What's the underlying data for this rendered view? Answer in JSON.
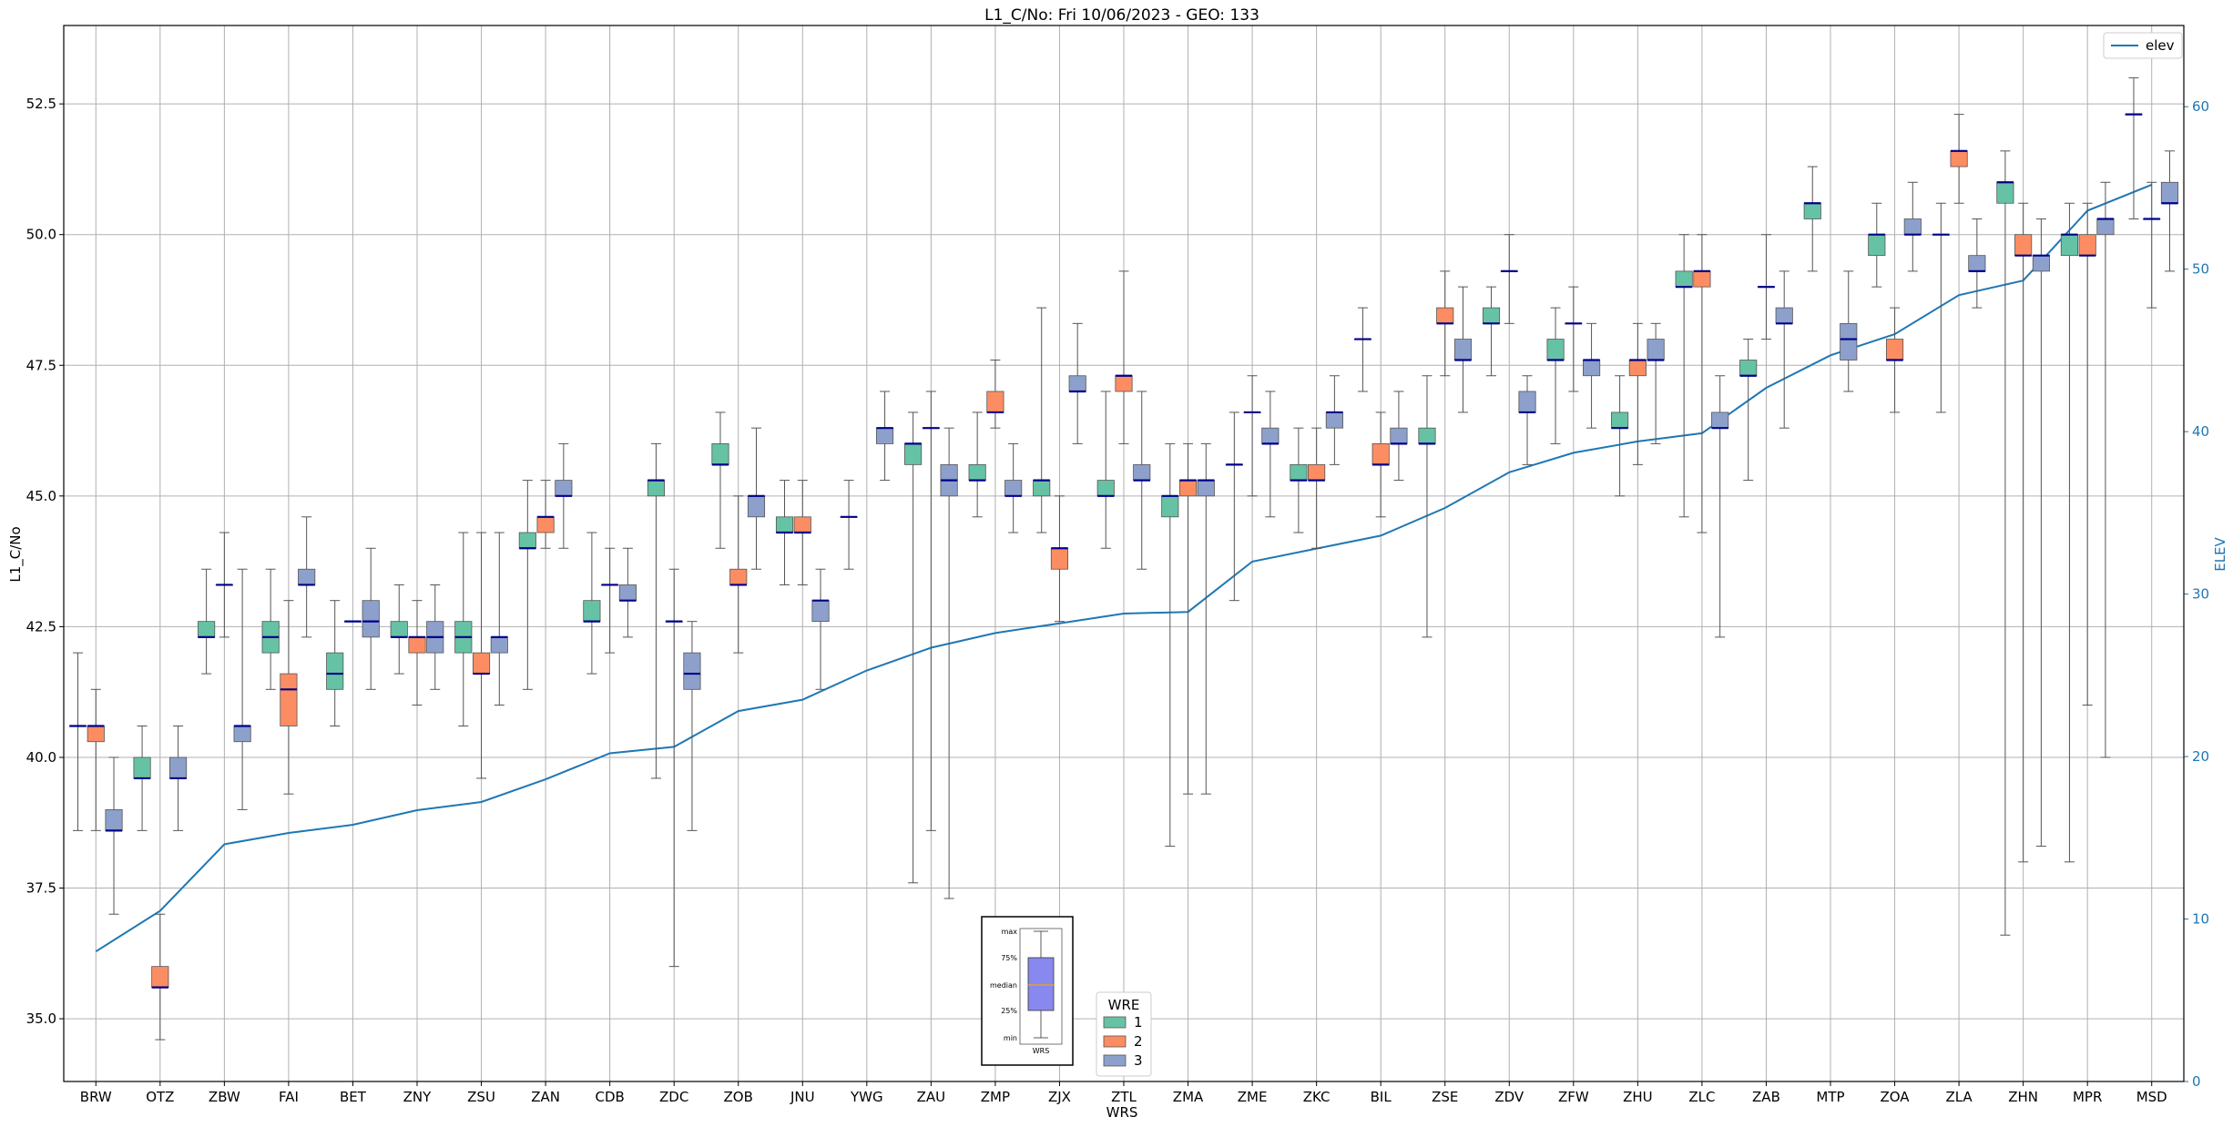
{
  "chart_data": {
    "type": "box",
    "title": "L1_C/No: Fri 10/06/2023 - GEO: 133",
    "xlabel": "WRS",
    "ylabel": "L1_C/No",
    "y2label": "ELEV",
    "ylim": [
      33.8,
      54.0
    ],
    "y2lim": [
      0,
      65
    ],
    "yticks": [
      "35.0",
      "37.5",
      "40.0",
      "42.5",
      "45.0",
      "47.5",
      "50.0",
      "52.5"
    ],
    "y2ticks": [
      "0",
      "10",
      "20",
      "30",
      "40",
      "50",
      "60"
    ],
    "grid": true,
    "colors": {
      "1": "#66c2a5",
      "2": "#fc8d62",
      "3": "#8da0cb",
      "elev": "#1f77b4",
      "median": "#00008b",
      "grid": "#b0b0b0"
    },
    "categories": [
      "BRW",
      "OTZ",
      "ZBW",
      "FAI",
      "BET",
      "ZNY",
      "ZSU",
      "ZAN",
      "CDB",
      "ZDC",
      "ZOB",
      "JNU",
      "YWG",
      "ZAU",
      "ZMP",
      "ZJX",
      "ZTL",
      "ZMA",
      "ZME",
      "ZKC",
      "BIL",
      "ZSE",
      "ZDV",
      "ZFW",
      "ZHU",
      "ZLC",
      "ZAB",
      "MTP",
      "ZOA",
      "ZLA",
      "ZHN",
      "MPR",
      "MSD"
    ],
    "boxes": [
      {
        "station": "BRW",
        "wre": 1,
        "min": 38.6,
        "q1": 40.6,
        "median": 40.6,
        "q3": 40.6,
        "max": 42.0
      },
      {
        "station": "BRW",
        "wre": 2,
        "min": 38.6,
        "q1": 40.3,
        "median": 40.6,
        "q3": 40.6,
        "max": 41.3
      },
      {
        "station": "BRW",
        "wre": 3,
        "min": 37.0,
        "q1": 38.6,
        "median": 38.6,
        "q3": 39.0,
        "max": 40.0
      },
      {
        "station": "OTZ",
        "wre": 1,
        "min": 38.6,
        "q1": 39.6,
        "median": 39.6,
        "q3": 40.0,
        "max": 40.6
      },
      {
        "station": "OTZ",
        "wre": 2,
        "min": 34.6,
        "q1": 35.6,
        "median": 35.6,
        "q3": 36.0,
        "max": 37.0
      },
      {
        "station": "OTZ",
        "wre": 3,
        "min": 38.6,
        "q1": 39.6,
        "median": 39.6,
        "q3": 40.0,
        "max": 40.6
      },
      {
        "station": "ZBW",
        "wre": 1,
        "min": 41.6,
        "q1": 42.3,
        "median": 42.3,
        "q3": 42.6,
        "max": 43.6
      },
      {
        "station": "ZBW",
        "wre": 2,
        "min": 42.3,
        "q1": 43.3,
        "median": 43.3,
        "q3": 43.3,
        "max": 44.3
      },
      {
        "station": "ZBW",
        "wre": 3,
        "min": 39.0,
        "q1": 40.3,
        "median": 40.6,
        "q3": 40.6,
        "max": 43.6
      },
      {
        "station": "FAI",
        "wre": 1,
        "min": 41.3,
        "q1": 42.0,
        "median": 42.3,
        "q3": 42.6,
        "max": 43.6
      },
      {
        "station": "FAI",
        "wre": 2,
        "min": 39.3,
        "q1": 40.6,
        "median": 41.3,
        "q3": 41.6,
        "max": 43.0
      },
      {
        "station": "FAI",
        "wre": 3,
        "min": 42.3,
        "q1": 43.3,
        "median": 43.3,
        "q3": 43.6,
        "max": 44.6
      },
      {
        "station": "BET",
        "wre": 1,
        "min": 40.6,
        "q1": 41.3,
        "median": 41.6,
        "q3": 42.0,
        "max": 43.0
      },
      {
        "station": "BET",
        "wre": 2,
        "min": 42.6,
        "q1": 42.6,
        "median": 42.6,
        "q3": 42.6,
        "max": 42.6
      },
      {
        "station": "BET",
        "wre": 3,
        "min": 41.3,
        "q1": 42.3,
        "median": 42.6,
        "q3": 43.0,
        "max": 44.0
      },
      {
        "station": "ZNY",
        "wre": 1,
        "min": 41.6,
        "q1": 42.3,
        "median": 42.3,
        "q3": 42.6,
        "max": 43.3
      },
      {
        "station": "ZNY",
        "wre": 2,
        "min": 41.0,
        "q1": 42.0,
        "median": 42.3,
        "q3": 42.3,
        "max": 43.0
      },
      {
        "station": "ZNY",
        "wre": 3,
        "min": 41.3,
        "q1": 42.0,
        "median": 42.3,
        "q3": 42.6,
        "max": 43.3
      },
      {
        "station": "ZSU",
        "wre": 1,
        "min": 40.6,
        "q1": 42.0,
        "median": 42.3,
        "q3": 42.6,
        "max": 44.3
      },
      {
        "station": "ZSU",
        "wre": 2,
        "min": 39.6,
        "q1": 41.6,
        "median": 41.6,
        "q3": 42.0,
        "max": 44.3
      },
      {
        "station": "ZSU",
        "wre": 3,
        "min": 41.0,
        "q1": 42.0,
        "median": 42.3,
        "q3": 42.3,
        "max": 44.3
      },
      {
        "station": "ZAN",
        "wre": 1,
        "min": 41.3,
        "q1": 44.0,
        "median": 44.0,
        "q3": 44.3,
        "max": 45.3
      },
      {
        "station": "ZAN",
        "wre": 2,
        "min": 44.0,
        "q1": 44.3,
        "median": 44.6,
        "q3": 44.6,
        "max": 45.3
      },
      {
        "station": "ZAN",
        "wre": 3,
        "min": 44.0,
        "q1": 45.0,
        "median": 45.0,
        "q3": 45.3,
        "max": 46.0
      },
      {
        "station": "CDB",
        "wre": 1,
        "min": 41.6,
        "q1": 42.6,
        "median": 42.6,
        "q3": 43.0,
        "max": 44.3
      },
      {
        "station": "CDB",
        "wre": 2,
        "min": 42.0,
        "q1": 43.3,
        "median": 43.3,
        "q3": 43.3,
        "max": 44.0
      },
      {
        "station": "CDB",
        "wre": 3,
        "min": 42.3,
        "q1": 43.0,
        "median": 43.0,
        "q3": 43.3,
        "max": 44.0
      },
      {
        "station": "ZDC",
        "wre": 1,
        "min": 39.6,
        "q1": 45.0,
        "median": 45.3,
        "q3": 45.3,
        "max": 46.0
      },
      {
        "station": "ZDC",
        "wre": 2,
        "min": 36.0,
        "q1": 42.6,
        "median": 42.6,
        "q3": 42.6,
        "max": 43.6
      },
      {
        "station": "ZDC",
        "wre": 3,
        "min": 38.6,
        "q1": 41.3,
        "median": 41.6,
        "q3": 42.0,
        "max": 42.6
      },
      {
        "station": "ZOB",
        "wre": 1,
        "min": 44.0,
        "q1": 45.6,
        "median": 45.6,
        "q3": 46.0,
        "max": 46.6
      },
      {
        "station": "ZOB",
        "wre": 2,
        "min": 42.0,
        "q1": 43.3,
        "median": 43.3,
        "q3": 43.6,
        "max": 45.0
      },
      {
        "station": "ZOB",
        "wre": 3,
        "min": 43.6,
        "q1": 44.6,
        "median": 45.0,
        "q3": 45.0,
        "max": 46.3
      },
      {
        "station": "JNU",
        "wre": 1,
        "min": 43.3,
        "q1": 44.3,
        "median": 44.3,
        "q3": 44.6,
        "max": 45.3
      },
      {
        "station": "JNU",
        "wre": 2,
        "min": 43.3,
        "q1": 44.3,
        "median": 44.3,
        "q3": 44.6,
        "max": 45.3
      },
      {
        "station": "JNU",
        "wre": 3,
        "min": 41.3,
        "q1": 42.6,
        "median": 43.0,
        "q3": 43.0,
        "max": 43.6
      },
      {
        "station": "YWG",
        "wre": 1,
        "min": 43.6,
        "q1": 44.6,
        "median": 44.6,
        "q3": 44.6,
        "max": 45.3
      },
      {
        "station": "ZAU",
        "wre": 1,
        "min": 37.6,
        "q1": 45.6,
        "median": 46.0,
        "q3": 46.0,
        "max": 46.6
      },
      {
        "station": "ZAU",
        "wre": 2,
        "min": 38.6,
        "q1": 46.3,
        "median": 46.3,
        "q3": 46.3,
        "max": 47.0
      },
      {
        "station": "ZAU",
        "wre": 3,
        "min": 37.3,
        "q1": 45.0,
        "median": 45.3,
        "q3": 45.6,
        "max": 46.3
      },
      {
        "station": "YWG",
        "wre": 3,
        "min": 45.3,
        "q1": 46.0,
        "median": 46.3,
        "q3": 46.3,
        "max": 47.0
      },
      {
        "station": "ZMP",
        "wre": 1,
        "min": 44.6,
        "q1": 45.3,
        "median": 45.3,
        "q3": 45.6,
        "max": 46.6
      },
      {
        "station": "ZMP",
        "wre": 2,
        "min": 46.3,
        "q1": 46.6,
        "median": 46.6,
        "q3": 47.0,
        "max": 47.6
      },
      {
        "station": "ZMP",
        "wre": 3,
        "min": 44.3,
        "q1": 45.0,
        "median": 45.0,
        "q3": 45.3,
        "max": 46.0
      },
      {
        "station": "ZJX",
        "wre": 1,
        "min": 44.3,
        "q1": 45.0,
        "median": 45.3,
        "q3": 45.3,
        "max": 48.6
      },
      {
        "station": "ZJX",
        "wre": 2,
        "min": 42.6,
        "q1": 43.6,
        "median": 44.0,
        "q3": 44.0,
        "max": 45.0
      },
      {
        "station": "ZJX",
        "wre": 3,
        "min": 46.0,
        "q1": 47.0,
        "median": 47.0,
        "q3": 47.3,
        "max": 48.3
      },
      {
        "station": "ZTL",
        "wre": 1,
        "min": 44.0,
        "q1": 45.0,
        "median": 45.0,
        "q3": 45.3,
        "max": 47.0
      },
      {
        "station": "ZTL",
        "wre": 2,
        "min": 46.0,
        "q1": 47.0,
        "median": 47.3,
        "q3": 47.3,
        "max": 49.3
      },
      {
        "station": "ZTL",
        "wre": 3,
        "min": 43.6,
        "q1": 45.3,
        "median": 45.3,
        "q3": 45.6,
        "max": 47.0
      },
      {
        "station": "ZMA",
        "wre": 1,
        "min": 38.3,
        "q1": 44.6,
        "median": 45.0,
        "q3": 45.0,
        "max": 46.0
      },
      {
        "station": "ZMA",
        "wre": 2,
        "min": 39.3,
        "q1": 45.0,
        "median": 45.3,
        "q3": 45.3,
        "max": 46.0
      },
      {
        "station": "ZMA",
        "wre": 3,
        "min": 39.3,
        "q1": 45.0,
        "median": 45.3,
        "q3": 45.3,
        "max": 46.0
      },
      {
        "station": "ZME",
        "wre": 1,
        "min": 43.0,
        "q1": 45.6,
        "median": 45.6,
        "q3": 45.6,
        "max": 46.6
      },
      {
        "station": "ZME",
        "wre": 2,
        "min": 45.0,
        "q1": 46.6,
        "median": 46.6,
        "q3": 46.6,
        "max": 47.3
      },
      {
        "station": "ZME",
        "wre": 3,
        "min": 44.6,
        "q1": 46.0,
        "median": 46.0,
        "q3": 46.3,
        "max": 47.0
      },
      {
        "station": "ZKC",
        "wre": 1,
        "min": 44.3,
        "q1": 45.3,
        "median": 45.3,
        "q3": 45.6,
        "max": 46.3
      },
      {
        "station": "ZKC",
        "wre": 2,
        "min": 44.0,
        "q1": 45.3,
        "median": 45.3,
        "q3": 45.6,
        "max": 46.3
      },
      {
        "station": "ZKC",
        "wre": 3,
        "min": 45.6,
        "q1": 46.3,
        "median": 46.6,
        "q3": 46.6,
        "max": 47.3
      },
      {
        "station": "BIL",
        "wre": 1,
        "min": 47.0,
        "q1": 48.0,
        "median": 48.0,
        "q3": 48.0,
        "max": 48.6
      },
      {
        "station": "BIL",
        "wre": 2,
        "min": 44.6,
        "q1": 45.6,
        "median": 45.6,
        "q3": 46.0,
        "max": 46.6
      },
      {
        "station": "BIL",
        "wre": 3,
        "min": 45.3,
        "q1": 46.0,
        "median": 46.0,
        "q3": 46.3,
        "max": 47.0
      },
      {
        "station": "ZSE",
        "wre": 1,
        "min": 42.3,
        "q1": 46.0,
        "median": 46.0,
        "q3": 46.3,
        "max": 47.3
      },
      {
        "station": "ZSE",
        "wre": 2,
        "min": 47.3,
        "q1": 48.3,
        "median": 48.3,
        "q3": 48.6,
        "max": 49.3
      },
      {
        "station": "ZSE",
        "wre": 3,
        "min": 46.6,
        "q1": 47.6,
        "median": 47.6,
        "q3": 48.0,
        "max": 49.0
      },
      {
        "station": "ZDV",
        "wre": 1,
        "min": 47.3,
        "q1": 48.3,
        "median": 48.3,
        "q3": 48.6,
        "max": 49.0
      },
      {
        "station": "ZDV",
        "wre": 2,
        "min": 48.3,
        "q1": 49.3,
        "median": 49.3,
        "q3": 49.3,
        "max": 50.0
      },
      {
        "station": "ZDV",
        "wre": 3,
        "min": 45.6,
        "q1": 46.6,
        "median": 46.6,
        "q3": 47.0,
        "max": 47.3
      },
      {
        "station": "ZFW",
        "wre": 1,
        "min": 46.0,
        "q1": 47.6,
        "median": 47.6,
        "q3": 48.0,
        "max": 48.6
      },
      {
        "station": "ZFW",
        "wre": 2,
        "min": 47.0,
        "q1": 48.3,
        "median": 48.3,
        "q3": 48.3,
        "max": 49.0
      },
      {
        "station": "ZFW",
        "wre": 3,
        "min": 46.3,
        "q1": 47.3,
        "median": 47.6,
        "q3": 47.6,
        "max": 48.3
      },
      {
        "station": "ZHU",
        "wre": 1,
        "min": 45.0,
        "q1": 46.3,
        "median": 46.3,
        "q3": 46.6,
        "max": 47.3
      },
      {
        "station": "ZHU",
        "wre": 2,
        "min": 45.6,
        "q1": 47.3,
        "median": 47.6,
        "q3": 47.6,
        "max": 48.3
      },
      {
        "station": "ZHU",
        "wre": 3,
        "min": 46.0,
        "q1": 47.6,
        "median": 47.6,
        "q3": 48.0,
        "max": 48.3
      },
      {
        "station": "ZLC",
        "wre": 1,
        "min": 44.6,
        "q1": 49.0,
        "median": 49.0,
        "q3": 49.3,
        "max": 50.0
      },
      {
        "station": "ZLC",
        "wre": 2,
        "min": 44.3,
        "q1": 49.0,
        "median": 49.3,
        "q3": 49.3,
        "max": 50.0
      },
      {
        "station": "ZLC",
        "wre": 3,
        "min": 42.3,
        "q1": 46.3,
        "median": 46.3,
        "q3": 46.6,
        "max": 47.3
      },
      {
        "station": "ZAB",
        "wre": 1,
        "min": 45.3,
        "q1": 47.3,
        "median": 47.3,
        "q3": 47.6,
        "max": 48.0
      },
      {
        "station": "ZAB",
        "wre": 2,
        "min": 48.0,
        "q1": 49.0,
        "median": 49.0,
        "q3": 49.0,
        "max": 50.0
      },
      {
        "station": "ZAB",
        "wre": 3,
        "min": 46.3,
        "q1": 48.3,
        "median": 48.3,
        "q3": 48.6,
        "max": 49.3
      },
      {
        "station": "MTP",
        "wre": 1,
        "min": 49.3,
        "q1": 50.3,
        "median": 50.6,
        "q3": 50.6,
        "max": 51.3
      },
      {
        "station": "MTP",
        "wre": 3,
        "min": 47.0,
        "q1": 47.6,
        "median": 48.0,
        "q3": 48.3,
        "max": 49.3
      },
      {
        "station": "ZOA",
        "wre": 1,
        "min": 49.0,
        "q1": 49.6,
        "median": 50.0,
        "q3": 50.0,
        "max": 50.6
      },
      {
        "station": "ZOA",
        "wre": 2,
        "min": 46.6,
        "q1": 47.6,
        "median": 47.6,
        "q3": 48.0,
        "max": 48.6
      },
      {
        "station": "ZOA",
        "wre": 3,
        "min": 49.3,
        "q1": 50.0,
        "median": 50.0,
        "q3": 50.3,
        "max": 51.0
      },
      {
        "station": "ZLA",
        "wre": 1,
        "min": 46.6,
        "q1": 50.0,
        "median": 50.0,
        "q3": 50.0,
        "max": 50.6
      },
      {
        "station": "ZLA",
        "wre": 2,
        "min": 50.6,
        "q1": 51.3,
        "median": 51.6,
        "q3": 51.6,
        "max": 52.3
      },
      {
        "station": "ZLA",
        "wre": 3,
        "min": 48.6,
        "q1": 49.3,
        "median": 49.3,
        "q3": 49.6,
        "max": 50.3
      },
      {
        "station": "ZHN",
        "wre": 1,
        "min": 36.6,
        "q1": 50.6,
        "median": 51.0,
        "q3": 51.0,
        "max": 51.6
      },
      {
        "station": "ZHN",
        "wre": 2,
        "min": 38.0,
        "q1": 49.6,
        "median": 49.6,
        "q3": 50.0,
        "max": 50.6
      },
      {
        "station": "ZHN",
        "wre": 3,
        "min": 38.3,
        "q1": 49.3,
        "median": 49.6,
        "q3": 49.6,
        "max": 50.3
      },
      {
        "station": "MPR",
        "wre": 1,
        "min": 38.0,
        "q1": 49.6,
        "median": 50.0,
        "q3": 50.0,
        "max": 50.6
      },
      {
        "station": "MPR",
        "wre": 2,
        "min": 41.0,
        "q1": 49.6,
        "median": 49.6,
        "q3": 50.0,
        "max": 50.6
      },
      {
        "station": "MPR",
        "wre": 3,
        "min": 40.0,
        "q1": 50.0,
        "median": 50.3,
        "q3": 50.3,
        "max": 51.0
      },
      {
        "station": "MSD",
        "wre": 1,
        "min": 50.3,
        "q1": 52.3,
        "median": 52.3,
        "q3": 52.3,
        "max": 53.0
      },
      {
        "station": "MSD",
        "wre": 2,
        "min": 48.6,
        "q1": 50.3,
        "median": 50.3,
        "q3": 50.3,
        "max": 51.0
      },
      {
        "station": "MSD",
        "wre": 3,
        "min": 49.3,
        "q1": 50.6,
        "median": 50.6,
        "q3": 51.0,
        "max": 51.6
      }
    ],
    "elev_series": {
      "name": "elev",
      "values": [
        8.0,
        10.5,
        14.6,
        15.3,
        15.8,
        16.7,
        17.2,
        18.6,
        20.2,
        20.6,
        22.8,
        23.5,
        25.3,
        26.7,
        27.6,
        28.2,
        28.8,
        28.9,
        32.0,
        32.8,
        33.6,
        35.3,
        37.5,
        38.7,
        39.4,
        39.9,
        42.7,
        44.7,
        46.0,
        48.4,
        49.3,
        53.6,
        55.2
      ]
    },
    "legend_elev": {
      "label": "elev",
      "placement": "top-right"
    },
    "legend_wre": {
      "title": "WRE",
      "items": [
        "1",
        "2",
        "3"
      ],
      "placement": "bottom-center"
    },
    "inset": {
      "labels": [
        "max",
        "75%",
        "median",
        "25%",
        "min"
      ],
      "xlabel": "WRS",
      "box_color": "#8888ee",
      "median_color": "#e0a030"
    }
  }
}
